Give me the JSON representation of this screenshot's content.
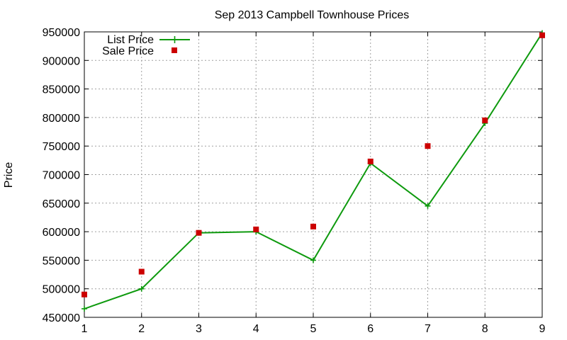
{
  "chart_data": {
    "type": "line",
    "title": "Sep 2013 Campbell Townhouse Prices",
    "xlabel": "",
    "ylabel": "Price",
    "x": [
      1,
      2,
      3,
      4,
      5,
      6,
      7,
      8,
      9
    ],
    "xlim": [
      1,
      9
    ],
    "ylim": [
      450000,
      950000
    ],
    "x_ticks": [
      "1",
      "2",
      "3",
      "4",
      "5",
      "6",
      "7",
      "8",
      "9"
    ],
    "y_ticks": [
      "450000",
      "500000",
      "550000",
      "600000",
      "650000",
      "700000",
      "750000",
      "800000",
      "850000",
      "900000",
      "950000"
    ],
    "grid": true,
    "legend_position": "top-left",
    "series": [
      {
        "name": "List Price",
        "style": "line-with-plus-markers",
        "color": "#0e9a0e",
        "values": [
          465000,
          500000,
          598000,
          600000,
          550000,
          720000,
          645000,
          790000,
          948000
        ]
      },
      {
        "name": "Sale Price",
        "style": "square-markers",
        "color": "#cc0000",
        "values": [
          490000,
          530000,
          598000,
          604000,
          609000,
          723000,
          750000,
          795000,
          944000
        ]
      }
    ]
  }
}
